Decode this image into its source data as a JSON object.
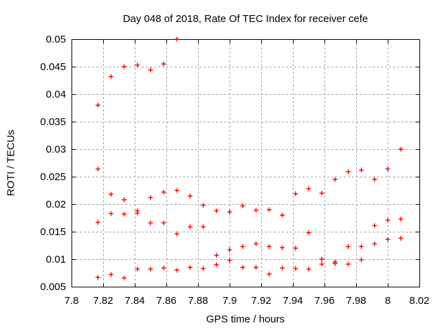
{
  "title": "Day 048 of 2018, Rate Of TEC Index for receiver cefe",
  "chart_data": {
    "type": "scatter",
    "title": "Day 048 of 2018, Rate Of TEC Index for receiver cefe",
    "xlabel": "GPS time / hours",
    "ylabel": "ROTI / TECUs",
    "xlim": [
      7.8,
      8.02
    ],
    "ylim": [
      0.005,
      0.05
    ],
    "grid": true,
    "legend": "none",
    "marker": "plus",
    "marker_color": "#ff0000",
    "grid_color": "#a0a0a0",
    "axis_color": "#000000",
    "background_color": "#ffffff",
    "xticks": [
      {
        "v": 7.8,
        "label": "7.8"
      },
      {
        "v": 7.82,
        "label": "7.82"
      },
      {
        "v": 7.84,
        "label": "7.84"
      },
      {
        "v": 7.86,
        "label": "7.86"
      },
      {
        "v": 7.88,
        "label": "7.88"
      },
      {
        "v": 7.9,
        "label": "7.9"
      },
      {
        "v": 7.92,
        "label": "7.92"
      },
      {
        "v": 7.94,
        "label": "7.94"
      },
      {
        "v": 7.96,
        "label": "7.96"
      },
      {
        "v": 7.98,
        "label": "7.98"
      },
      {
        "v": 8.0,
        "label": "8"
      },
      {
        "v": 8.02,
        "label": "8.02"
      }
    ],
    "yticks": [
      {
        "v": 0.005,
        "label": "0.005"
      },
      {
        "v": 0.01,
        "label": "0.01"
      },
      {
        "v": 0.015,
        "label": "0.015"
      },
      {
        "v": 0.02,
        "label": "0.02"
      },
      {
        "v": 0.025,
        "label": "0.025"
      },
      {
        "v": 0.03,
        "label": "0.03"
      },
      {
        "v": 0.035,
        "label": "0.035"
      },
      {
        "v": 0.04,
        "label": "0.04"
      },
      {
        "v": 0.045,
        "label": "0.045"
      },
      {
        "v": 0.05,
        "label": "0.05"
      }
    ],
    "points": [
      [
        7.8167,
        0.038
      ],
      [
        7.8167,
        0.0264
      ],
      [
        7.8167,
        0.0167
      ],
      [
        7.8167,
        0.0067
      ],
      [
        7.825,
        0.0432
      ],
      [
        7.825,
        0.0218
      ],
      [
        7.825,
        0.0183
      ],
      [
        7.825,
        0.0072
      ],
      [
        7.8333,
        0.045
      ],
      [
        7.8333,
        0.0208
      ],
      [
        7.8333,
        0.0182
      ],
      [
        7.8333,
        0.0066
      ],
      [
        7.8417,
        0.0453
      ],
      [
        7.8417,
        0.0188
      ],
      [
        7.8417,
        0.0184
      ],
      [
        7.8417,
        0.0082
      ],
      [
        7.85,
        0.0444
      ],
      [
        7.85,
        0.0212
      ],
      [
        7.85,
        0.0166
      ],
      [
        7.85,
        0.0082
      ],
      [
        7.8583,
        0.0455
      ],
      [
        7.8583,
        0.0222
      ],
      [
        7.8583,
        0.0166
      ],
      [
        7.8583,
        0.0084
      ],
      [
        7.8667,
        0.05
      ],
      [
        7.8667,
        0.0225
      ],
      [
        7.8667,
        0.0146
      ],
      [
        7.8667,
        0.008
      ],
      [
        7.875,
        0.0215
      ],
      [
        7.875,
        0.0159
      ],
      [
        7.875,
        0.0085
      ],
      [
        7.8833,
        0.0198
      ],
      [
        7.8833,
        0.0159
      ],
      [
        7.8833,
        0.0083
      ],
      [
        7.8917,
        0.0188
      ],
      [
        7.8917,
        0.0107
      ],
      [
        7.8917,
        0.009
      ],
      [
        7.9,
        0.0186
      ],
      [
        7.9,
        0.0117
      ],
      [
        7.9,
        0.0098
      ],
      [
        7.9083,
        0.0197
      ],
      [
        7.9083,
        0.0123
      ],
      [
        7.9083,
        0.0085
      ],
      [
        7.9167,
        0.0189
      ],
      [
        7.9167,
        0.0128
      ],
      [
        7.9167,
        0.0085
      ],
      [
        7.925,
        0.019
      ],
      [
        7.925,
        0.0123
      ],
      [
        7.925,
        0.0073
      ],
      [
        7.9333,
        0.018
      ],
      [
        7.9333,
        0.0121
      ],
      [
        7.9333,
        0.0084
      ],
      [
        7.9417,
        0.0219
      ],
      [
        7.9417,
        0.012
      ],
      [
        7.9417,
        0.0083
      ],
      [
        7.95,
        0.0228
      ],
      [
        7.95,
        0.0148
      ],
      [
        7.95,
        0.0082
      ],
      [
        7.9583,
        0.022
      ],
      [
        7.9583,
        0.01
      ],
      [
        7.9583,
        0.0091
      ],
      [
        7.9667,
        0.0245
      ],
      [
        7.9667,
        0.0095
      ],
      [
        7.9667,
        0.0092
      ],
      [
        7.975,
        0.0259
      ],
      [
        7.975,
        0.0123
      ],
      [
        7.975,
        0.0091
      ],
      [
        7.9833,
        0.0262
      ],
      [
        7.9833,
        0.0123
      ],
      [
        7.9833,
        0.0099
      ],
      [
        7.9917,
        0.0245
      ],
      [
        7.9917,
        0.0161
      ],
      [
        7.9917,
        0.0128
      ],
      [
        8.0,
        0.0264
      ],
      [
        8.0,
        0.0171
      ],
      [
        8.0,
        0.0136
      ],
      [
        8.0083,
        0.03
      ],
      [
        8.0083,
        0.0173
      ],
      [
        8.0083,
        0.0138
      ]
    ]
  }
}
